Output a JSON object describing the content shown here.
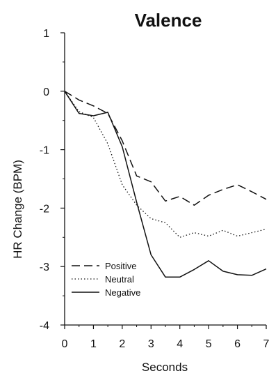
{
  "chart_data": {
    "type": "line",
    "title": "Valence",
    "xlabel": "Seconds",
    "ylabel": "HR Change (BPM)",
    "xlim": [
      0,
      7
    ],
    "ylim": [
      -4,
      1
    ],
    "xticks": [
      0,
      1,
      2,
      3,
      4,
      5,
      6,
      7
    ],
    "yticks": [
      1,
      0,
      -1,
      -2,
      -3,
      -4
    ],
    "grid": false,
    "legend_position": "bottom-left",
    "series": [
      {
        "name": "Positive",
        "line_style": "dashed",
        "x": [
          0,
          0.5,
          1,
          1.5,
          2,
          2.5,
          3,
          3.5,
          4,
          4.5,
          5,
          5.5,
          6,
          6.5,
          7
        ],
        "y": [
          0,
          -0.15,
          -0.25,
          -0.38,
          -0.85,
          -1.45,
          -1.55,
          -1.88,
          -1.8,
          -1.95,
          -1.78,
          -1.68,
          -1.6,
          -1.72,
          -1.85
        ]
      },
      {
        "name": "Neutral",
        "line_style": "dotted",
        "x": [
          0,
          0.5,
          1,
          1.5,
          2,
          2.5,
          3,
          3.5,
          4,
          4.5,
          5,
          5.5,
          6,
          6.5,
          7
        ],
        "y": [
          0,
          -0.35,
          -0.45,
          -0.9,
          -1.6,
          -1.95,
          -2.18,
          -2.25,
          -2.5,
          -2.42,
          -2.48,
          -2.38,
          -2.48,
          -2.42,
          -2.36
        ]
      },
      {
        "name": "Negative",
        "line_style": "solid",
        "x": [
          0,
          0.5,
          1,
          1.5,
          2,
          2.5,
          3,
          3.5,
          4,
          4.5,
          5,
          5.5,
          6,
          6.5,
          7
        ],
        "y": [
          0,
          -0.38,
          -0.42,
          -0.36,
          -0.95,
          -1.9,
          -2.8,
          -3.18,
          -3.18,
          -3.05,
          -2.9,
          -3.08,
          -3.14,
          -3.15,
          -3.04
        ]
      }
    ]
  }
}
